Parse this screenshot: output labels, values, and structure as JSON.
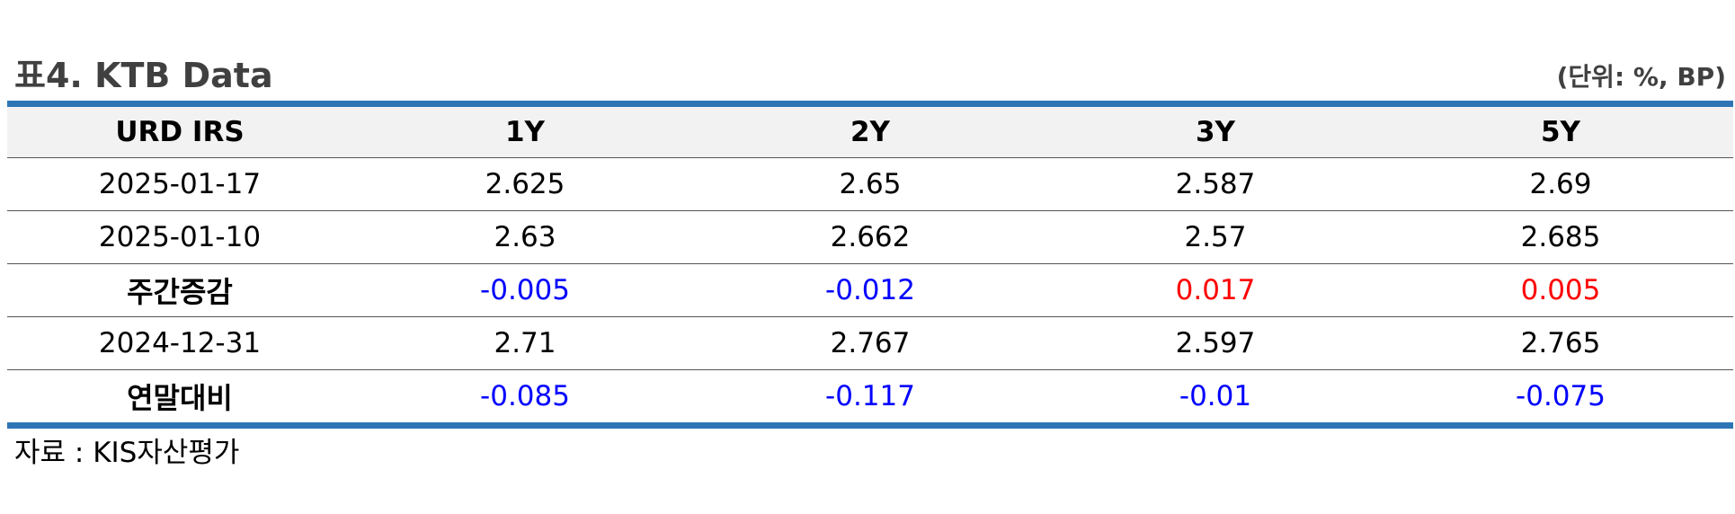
{
  "header": {
    "title": "표4. KTB Data",
    "unit": "(단위: %, BP)"
  },
  "table": {
    "columns": [
      "URD IRS",
      "1Y",
      "2Y",
      "3Y",
      "5Y"
    ],
    "rows": [
      {
        "label": "2025-01-17",
        "values": [
          "2.625",
          "2.65",
          "2.587",
          "2.69"
        ]
      },
      {
        "label": "2025-01-10",
        "values": [
          "2.63",
          "2.662",
          "2.57",
          "2.685"
        ]
      },
      {
        "label": "주간증감",
        "values": [
          "-0.005",
          "-0.012",
          "0.017",
          "0.005"
        ]
      },
      {
        "label": "2024-12-31",
        "values": [
          "2.71",
          "2.767",
          "2.597",
          "2.765"
        ]
      },
      {
        "label": "연말대비",
        "values": [
          "-0.085",
          "-0.117",
          "-0.01",
          "-0.075"
        ]
      }
    ]
  },
  "colors": {
    "accent_border": "#2e75b6",
    "negative": "#0000ff",
    "positive": "#ff0000",
    "header_bg": "#f2f2f2"
  },
  "footer": {
    "source": "자료 : KIS자산평가"
  }
}
